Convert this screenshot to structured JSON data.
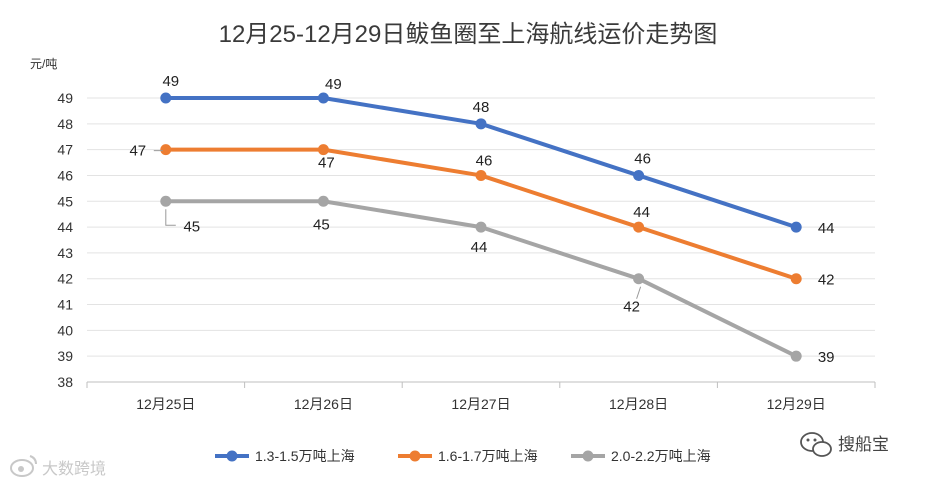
{
  "chart_data": {
    "type": "line",
    "title": "12月25-12月29日鲅鱼圈至上海航线运价走势图",
    "ylabel": "元/吨",
    "categories": [
      "12月25日",
      "12月26日",
      "12月27日",
      "12月28日",
      "12月29日"
    ],
    "ylim": [
      38,
      49
    ],
    "yticks": [
      38,
      39,
      40,
      41,
      42,
      43,
      44,
      45,
      46,
      47,
      48,
      49
    ],
    "grid": true,
    "legend": "bottom",
    "series": [
      {
        "name": "1.3-1.5万吨上海",
        "color": "#4472c4",
        "values": [
          49,
          49,
          48,
          46,
          44
        ]
      },
      {
        "name": "1.6-1.7万吨上海",
        "color": "#ed7d31",
        "values": [
          47,
          47,
          46,
          44,
          42
        ]
      },
      {
        "name": "2.0-2.2万吨上海",
        "color": "#a5a5a5",
        "values": [
          45,
          45,
          44,
          42,
          39
        ]
      }
    ]
  },
  "watermarks": {
    "left": "大数跨境",
    "right": "搜船宝"
  }
}
